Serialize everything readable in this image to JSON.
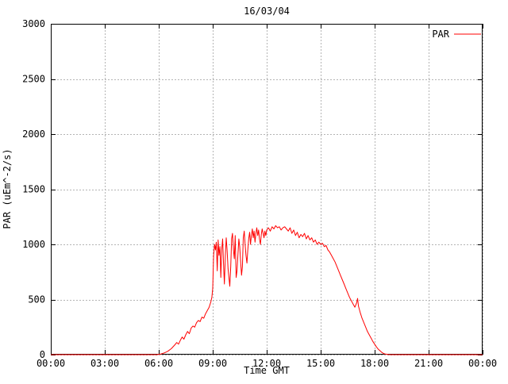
{
  "page_title": "16/03/04",
  "colors": {
    "background": "#ffffff",
    "series_line": "#ff0000",
    "grid": "#b4b4b4",
    "axis": "#000000",
    "text": "#000000"
  },
  "chart_data": {
    "type": "line",
    "title": "16/03/04",
    "xlabel": "Time GMT",
    "ylabel": "PAR (uEm^-2/s)",
    "xlim": [
      0,
      24
    ],
    "ylim": [
      0,
      3000
    ],
    "grid": true,
    "legend": {
      "label": "PAR",
      "color": "#ff0000",
      "position": "top-right"
    },
    "x_ticks": [
      {
        "v": 0,
        "label": "00:00"
      },
      {
        "v": 3,
        "label": "03:00"
      },
      {
        "v": 6,
        "label": "06:00"
      },
      {
        "v": 9,
        "label": "09:00"
      },
      {
        "v": 12,
        "label": "12:00"
      },
      {
        "v": 15,
        "label": "15:00"
      },
      {
        "v": 18,
        "label": "18:00"
      },
      {
        "v": 21,
        "label": "21:00"
      },
      {
        "v": 24,
        "label": "00:00"
      }
    ],
    "y_ticks": [
      {
        "v": 0,
        "label": "0"
      },
      {
        "v": 500,
        "label": "500"
      },
      {
        "v": 1000,
        "label": "1000"
      },
      {
        "v": 1500,
        "label": "1500"
      },
      {
        "v": 2000,
        "label": "2000"
      },
      {
        "v": 2500,
        "label": "2500"
      },
      {
        "v": 3000,
        "label": "3000"
      }
    ],
    "series": [
      {
        "name": "PAR",
        "color": "#ff0000",
        "points": [
          [
            0,
            0
          ],
          [
            1,
            0
          ],
          [
            2,
            0
          ],
          [
            3,
            0
          ],
          [
            4,
            0
          ],
          [
            5,
            0
          ],
          [
            5.9,
            0
          ],
          [
            6.1,
            5
          ],
          [
            6.3,
            15
          ],
          [
            6.5,
            30
          ],
          [
            6.7,
            55
          ],
          [
            6.9,
            90
          ],
          [
            7.0,
            110
          ],
          [
            7.1,
            95
          ],
          [
            7.2,
            130
          ],
          [
            7.3,
            160
          ],
          [
            7.4,
            140
          ],
          [
            7.5,
            180
          ],
          [
            7.6,
            210
          ],
          [
            7.7,
            190
          ],
          [
            7.8,
            240
          ],
          [
            7.9,
            260
          ],
          [
            8.0,
            250
          ],
          [
            8.1,
            290
          ],
          [
            8.2,
            310
          ],
          [
            8.3,
            300
          ],
          [
            8.4,
            340
          ],
          [
            8.5,
            330
          ],
          [
            8.6,
            370
          ],
          [
            8.7,
            400
          ],
          [
            8.8,
            430
          ],
          [
            8.9,
            480
          ],
          [
            8.95,
            520
          ],
          [
            9.0,
            600
          ],
          [
            9.05,
            900
          ],
          [
            9.1,
            1000
          ],
          [
            9.15,
            950
          ],
          [
            9.2,
            1020
          ],
          [
            9.25,
            760
          ],
          [
            9.3,
            1040
          ],
          [
            9.35,
            900
          ],
          [
            9.4,
            980
          ],
          [
            9.45,
            700
          ],
          [
            9.5,
            950
          ],
          [
            9.55,
            1050
          ],
          [
            9.6,
            820
          ],
          [
            9.65,
            640
          ],
          [
            9.7,
            900
          ],
          [
            9.75,
            1060
          ],
          [
            9.8,
            950
          ],
          [
            9.85,
            780
          ],
          [
            9.9,
            700
          ],
          [
            9.95,
            620
          ],
          [
            10.0,
            800
          ],
          [
            10.05,
            1050
          ],
          [
            10.1,
            1100
          ],
          [
            10.15,
            950
          ],
          [
            10.2,
            870
          ],
          [
            10.25,
            1080
          ],
          [
            10.3,
            700
          ],
          [
            10.35,
            760
          ],
          [
            10.4,
            900
          ],
          [
            10.45,
            1050
          ],
          [
            10.5,
            980
          ],
          [
            10.55,
            850
          ],
          [
            10.6,
            720
          ],
          [
            10.65,
            800
          ],
          [
            10.7,
            1060
          ],
          [
            10.75,
            1120
          ],
          [
            10.8,
            1000
          ],
          [
            10.85,
            900
          ],
          [
            10.9,
            830
          ],
          [
            10.95,
            950
          ],
          [
            11.0,
            1050
          ],
          [
            11.05,
            1110
          ],
          [
            11.1,
            1000
          ],
          [
            11.15,
            1080
          ],
          [
            11.2,
            1140
          ],
          [
            11.25,
            1060
          ],
          [
            11.3,
            1120
          ],
          [
            11.35,
            1020
          ],
          [
            11.4,
            1100
          ],
          [
            11.45,
            1150
          ],
          [
            11.5,
            1080
          ],
          [
            11.55,
            1130
          ],
          [
            11.6,
            1050
          ],
          [
            11.65,
            1000
          ],
          [
            11.7,
            1090
          ],
          [
            11.75,
            1140
          ],
          [
            11.8,
            1100
          ],
          [
            11.85,
            1060
          ],
          [
            11.9,
            1120
          ],
          [
            11.95,
            1080
          ],
          [
            12.0,
            1130
          ],
          [
            12.1,
            1150
          ],
          [
            12.2,
            1120
          ],
          [
            12.3,
            1160
          ],
          [
            12.4,
            1140
          ],
          [
            12.5,
            1170
          ],
          [
            12.6,
            1150
          ],
          [
            12.7,
            1160
          ],
          [
            12.8,
            1130
          ],
          [
            12.9,
            1150
          ],
          [
            13.0,
            1160
          ],
          [
            13.1,
            1140
          ],
          [
            13.2,
            1120
          ],
          [
            13.3,
            1150
          ],
          [
            13.4,
            1100
          ],
          [
            13.5,
            1130
          ],
          [
            13.6,
            1080
          ],
          [
            13.7,
            1110
          ],
          [
            13.8,
            1060
          ],
          [
            13.9,
            1090
          ],
          [
            14.0,
            1070
          ],
          [
            14.1,
            1100
          ],
          [
            14.2,
            1050
          ],
          [
            14.3,
            1080
          ],
          [
            14.4,
            1040
          ],
          [
            14.5,
            1060
          ],
          [
            14.6,
            1020
          ],
          [
            14.7,
            1040
          ],
          [
            14.8,
            1000
          ],
          [
            14.9,
            1020
          ],
          [
            15.0,
            1000
          ],
          [
            15.1,
            1010
          ],
          [
            15.2,
            980
          ],
          [
            15.3,
            990
          ],
          [
            15.4,
            950
          ],
          [
            15.5,
            930
          ],
          [
            15.6,
            900
          ],
          [
            15.7,
            870
          ],
          [
            15.8,
            840
          ],
          [
            15.9,
            800
          ],
          [
            16.0,
            760
          ],
          [
            16.1,
            720
          ],
          [
            16.2,
            680
          ],
          [
            16.3,
            640
          ],
          [
            16.4,
            600
          ],
          [
            16.5,
            560
          ],
          [
            16.6,
            520
          ],
          [
            16.7,
            490
          ],
          [
            16.8,
            460
          ],
          [
            16.9,
            430
          ],
          [
            17.0,
            470
          ],
          [
            17.05,
            510
          ],
          [
            17.1,
            440
          ],
          [
            17.2,
            380
          ],
          [
            17.3,
            330
          ],
          [
            17.4,
            290
          ],
          [
            17.5,
            250
          ],
          [
            17.6,
            210
          ],
          [
            17.7,
            180
          ],
          [
            17.8,
            150
          ],
          [
            17.9,
            120
          ],
          [
            18.0,
            95
          ],
          [
            18.1,
            70
          ],
          [
            18.2,
            50
          ],
          [
            18.3,
            35
          ],
          [
            18.4,
            20
          ],
          [
            18.5,
            10
          ],
          [
            18.6,
            5
          ],
          [
            18.8,
            0
          ],
          [
            20,
            0
          ],
          [
            22,
            0
          ],
          [
            24,
            0
          ]
        ]
      }
    ]
  }
}
